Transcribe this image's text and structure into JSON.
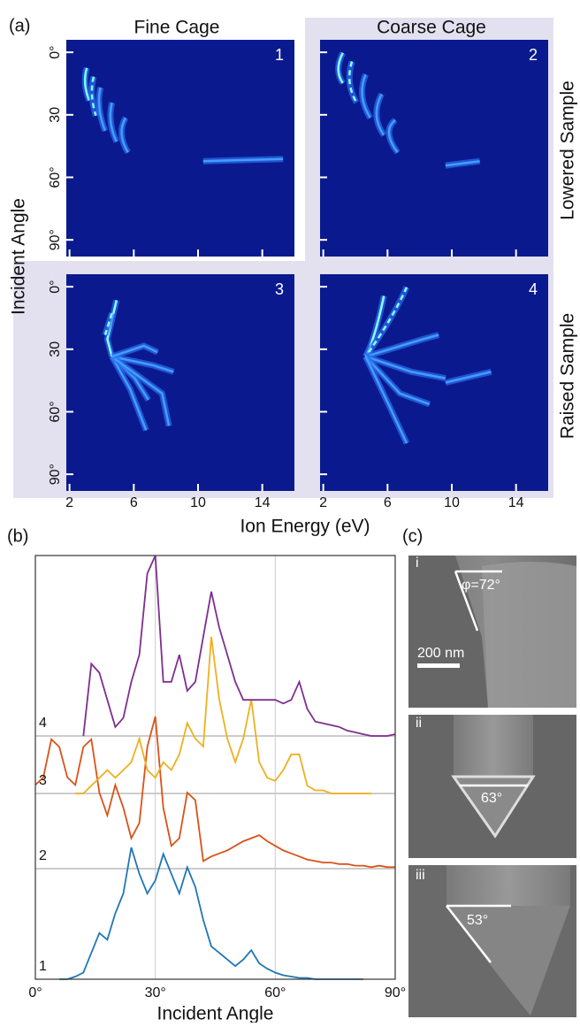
{
  "panel_a": {
    "label": "(a)",
    "column_titles": [
      "Fine Cage",
      "Coarse Cage"
    ],
    "row_titles": [
      "Lowered Sample",
      "Raised Sample"
    ],
    "ylabel": "Incident Angle",
    "xlabel": "Ion Energy (eV)",
    "xlim": [
      1.8,
      16
    ],
    "ylim": [
      -6,
      98
    ],
    "xticks": [
      2,
      6,
      10,
      14
    ],
    "yticks": [
      {
        "value": 0,
        "label": "0°"
      },
      {
        "value": 30,
        "label": "30"
      },
      {
        "value": 60,
        "label": "60°"
      },
      {
        "value": 90,
        "label": "90°"
      }
    ],
    "maps": [
      "1",
      "2",
      "3",
      "4"
    ]
  },
  "chart_data": {
    "type": "line",
    "label": "(b)",
    "xlabel": "Incident Angle",
    "xlim": [
      0,
      90
    ],
    "xticks": [
      {
        "value": 0,
        "label": "0°"
      },
      {
        "value": 30,
        "label": "30°"
      },
      {
        "value": 60,
        "label": "60°"
      },
      {
        "value": 90,
        "label": "90°"
      }
    ],
    "grid": true,
    "x": [
      0,
      2,
      4,
      6,
      8,
      10,
      12,
      14,
      16,
      18,
      20,
      22,
      24,
      26,
      28,
      30,
      32,
      34,
      36,
      38,
      40,
      42,
      44,
      46,
      48,
      50,
      52,
      54,
      56,
      58,
      60,
      62,
      64,
      66,
      68,
      70,
      72,
      74,
      76,
      78,
      80,
      82,
      84,
      86,
      88,
      90
    ],
    "series": [
      {
        "name": "1",
        "color": "#1f77b4",
        "values": [
          null,
          null,
          null,
          0,
          0,
          0.02,
          0.05,
          0.2,
          0.35,
          0.3,
          0.5,
          0.65,
          1.0,
          0.8,
          0.65,
          0.75,
          0.95,
          0.8,
          0.65,
          0.85,
          0.7,
          0.45,
          0.25,
          0.2,
          0.15,
          0.1,
          0.15,
          0.22,
          0.12,
          0.08,
          0.05,
          0.03,
          0.02,
          0.01,
          0.01,
          0,
          0,
          0,
          0,
          0,
          0,
          0,
          null,
          null,
          null,
          null
        ]
      },
      {
        "name": "2",
        "color": "#d95319",
        "values": [
          0.55,
          0.6,
          0.85,
          0.8,
          0.6,
          0.55,
          0.8,
          0.85,
          0.5,
          0.35,
          0.55,
          0.4,
          0.2,
          0.3,
          0.8,
          1.0,
          0.4,
          0.15,
          0.2,
          0.5,
          0.45,
          0.05,
          0.08,
          0.1,
          0.12,
          0.15,
          0.18,
          0.2,
          0.22,
          0.18,
          0.15,
          0.12,
          0.1,
          0.08,
          0.06,
          0.05,
          0.04,
          0.04,
          0.03,
          0.03,
          0.02,
          0.02,
          0.01,
          0.02,
          0.01,
          0.01
        ]
      },
      {
        "name": "3",
        "color": "#edb120",
        "values": [
          null,
          null,
          null,
          null,
          null,
          0,
          0,
          0.05,
          0.1,
          0.15,
          0.1,
          0.15,
          0.2,
          0.35,
          0.15,
          0.1,
          0.2,
          0.15,
          0.25,
          0.45,
          0.35,
          0.3,
          1.0,
          0.6,
          0.35,
          0.2,
          0.35,
          0.6,
          0.2,
          0.1,
          0.08,
          0.15,
          0.25,
          0.25,
          0.05,
          0.02,
          0.02,
          0,
          0,
          0,
          0,
          0,
          0,
          null,
          null,
          null
        ]
      },
      {
        "name": "4",
        "color": "#7e2f8e",
        "values": [
          null,
          null,
          null,
          null,
          null,
          null,
          0,
          0.4,
          0.35,
          0.2,
          0.05,
          0.1,
          0.3,
          0.45,
          0.9,
          1.0,
          0.3,
          0.3,
          0.45,
          0.25,
          0.3,
          0.55,
          0.8,
          0.6,
          0.45,
          0.3,
          0.2,
          0.2,
          0.2,
          0.2,
          0.2,
          0.18,
          0.2,
          0.3,
          0.15,
          0.08,
          0.07,
          0.06,
          0.05,
          0.03,
          0.02,
          0.01,
          0,
          0,
          0,
          0.01
        ]
      }
    ]
  },
  "panel_c": {
    "label": "(c)",
    "images": [
      {
        "id": "i",
        "angle": "φ=72°",
        "scale": "200 nm"
      },
      {
        "id": "ii",
        "angle": "63°"
      },
      {
        "id": "iii",
        "angle": "53°"
      }
    ]
  }
}
